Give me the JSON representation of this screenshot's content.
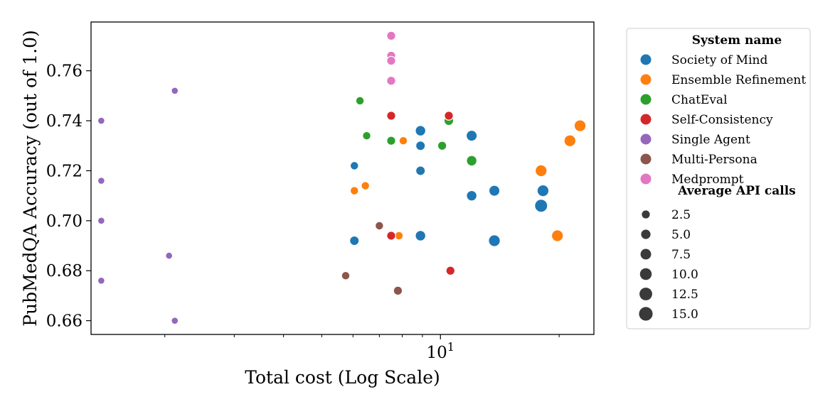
{
  "chart_data": {
    "type": "scatter",
    "xlabel": "Total cost (Log Scale)",
    "ylabel": "PubMedQA Accuracy (out of 1.0)",
    "x_scale": "log",
    "xlim": [
      1.3,
      24.5
    ],
    "ylim": [
      0.6545,
      0.7795
    ],
    "x_tick_labels": [
      {
        "value": 10,
        "label": "10",
        "sup": "1"
      }
    ],
    "x_minor_ticks": [
      2,
      3,
      4,
      5,
      6,
      7,
      8,
      9,
      20
    ],
    "y_ticks": [
      0.66,
      0.68,
      0.7,
      0.72,
      0.74,
      0.76
    ],
    "y_tick_labels": [
      "0.66",
      "0.68",
      "0.70",
      "0.72",
      "0.74",
      "0.76"
    ],
    "grid": false,
    "legend_position": "outside-right",
    "hue_title": "System name",
    "size_title": "Average API calls",
    "size_legend": [
      2.5,
      5.0,
      7.5,
      10.0,
      12.5,
      15.0
    ],
    "size_labels": [
      "2.5",
      "5.0",
      "7.5",
      "10.0",
      "12.5",
      "15.0"
    ],
    "series": [
      {
        "name": "Society of Mind",
        "color": "#1f77b4",
        "points": [
          {
            "x": 6.05,
            "y": 0.722,
            "calls": 3
          },
          {
            "x": 6.05,
            "y": 0.692,
            "calls": 5
          },
          {
            "x": 8.9,
            "y": 0.736,
            "calls": 7
          },
          {
            "x": 8.9,
            "y": 0.73,
            "calls": 5
          },
          {
            "x": 8.9,
            "y": 0.72,
            "calls": 5
          },
          {
            "x": 8.9,
            "y": 0.694,
            "calls": 7
          },
          {
            "x": 12.0,
            "y": 0.734,
            "calls": 8
          },
          {
            "x": 12.0,
            "y": 0.71,
            "calls": 7
          },
          {
            "x": 13.7,
            "y": 0.712,
            "calls": 8
          },
          {
            "x": 13.7,
            "y": 0.692,
            "calls": 10
          },
          {
            "x": 18.2,
            "y": 0.712,
            "calls": 10
          },
          {
            "x": 18.0,
            "y": 0.706,
            "calls": 13
          }
        ]
      },
      {
        "name": "Ensemble Refinement",
        "color": "#ff7f0e",
        "points": [
          {
            "x": 6.05,
            "y": 0.712,
            "calls": 3
          },
          {
            "x": 6.45,
            "y": 0.714,
            "calls": 3
          },
          {
            "x": 8.05,
            "y": 0.732,
            "calls": 3
          },
          {
            "x": 7.85,
            "y": 0.694,
            "calls": 3
          },
          {
            "x": 18.0,
            "y": 0.72,
            "calls": 10
          },
          {
            "x": 19.8,
            "y": 0.694,
            "calls": 10
          },
          {
            "x": 21.3,
            "y": 0.732,
            "calls": 10
          },
          {
            "x": 22.6,
            "y": 0.738,
            "calls": 10
          }
        ]
      },
      {
        "name": "ChatEval",
        "color": "#2ca02c",
        "points": [
          {
            "x": 6.25,
            "y": 0.748,
            "calls": 3
          },
          {
            "x": 6.5,
            "y": 0.734,
            "calls": 3
          },
          {
            "x": 7.5,
            "y": 0.732,
            "calls": 4
          },
          {
            "x": 10.1,
            "y": 0.73,
            "calls": 4
          },
          {
            "x": 10.5,
            "y": 0.74,
            "calls": 5
          },
          {
            "x": 12.0,
            "y": 0.724,
            "calls": 7
          }
        ]
      },
      {
        "name": "Self-Consistency",
        "color": "#d62728",
        "points": [
          {
            "x": 7.5,
            "y": 0.742,
            "calls": 4
          },
          {
            "x": 7.5,
            "y": 0.694,
            "calls": 4
          },
          {
            "x": 10.5,
            "y": 0.742,
            "calls": 4
          },
          {
            "x": 10.6,
            "y": 0.68,
            "calls": 4
          }
        ]
      },
      {
        "name": "Single Agent",
        "color": "#9467bd",
        "points": [
          {
            "x": 1.38,
            "y": 0.74,
            "calls": 1
          },
          {
            "x": 1.38,
            "y": 0.716,
            "calls": 1
          },
          {
            "x": 1.38,
            "y": 0.7,
            "calls": 1
          },
          {
            "x": 1.38,
            "y": 0.676,
            "calls": 1
          },
          {
            "x": 2.12,
            "y": 0.752,
            "calls": 1
          },
          {
            "x": 2.05,
            "y": 0.686,
            "calls": 1
          },
          {
            "x": 2.12,
            "y": 0.66,
            "calls": 1
          }
        ]
      },
      {
        "name": "Multi-Persona",
        "color": "#8c564b",
        "points": [
          {
            "x": 5.75,
            "y": 0.678,
            "calls": 3
          },
          {
            "x": 7.0,
            "y": 0.698,
            "calls": 3
          },
          {
            "x": 7.8,
            "y": 0.672,
            "calls": 4
          }
        ]
      },
      {
        "name": "Medprompt",
        "color": "#e377c2",
        "points": [
          {
            "x": 7.5,
            "y": 0.774,
            "calls": 4
          },
          {
            "x": 7.5,
            "y": 0.766,
            "calls": 4
          },
          {
            "x": 7.5,
            "y": 0.764,
            "calls": 4
          },
          {
            "x": 7.5,
            "y": 0.756,
            "calls": 4
          }
        ]
      }
    ]
  }
}
